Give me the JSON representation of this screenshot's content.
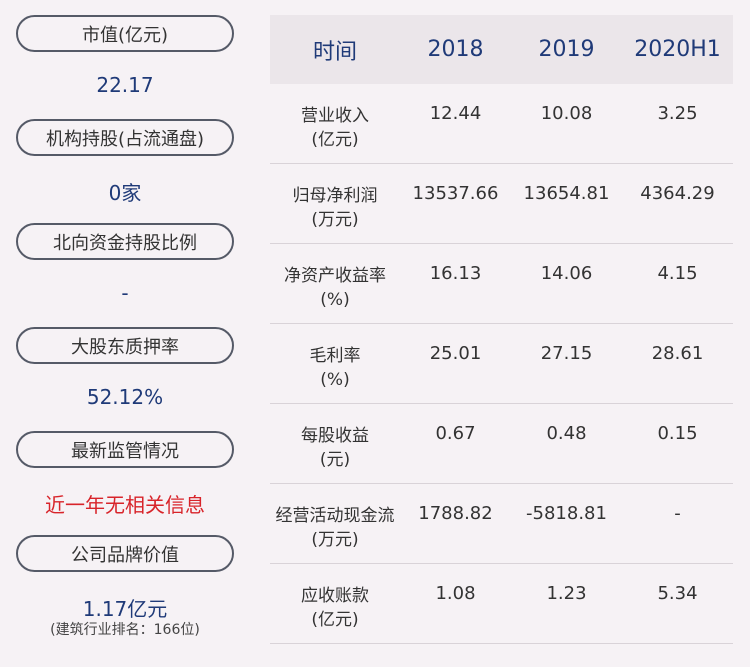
{
  "left_panel": {
    "market_cap_label": "市值(亿元)",
    "market_cap_value": "22.17",
    "institution_label": "机构持股(占流通盘)",
    "institution_value": "0家",
    "northbound_label": "北向资金持股比例",
    "northbound_value": "-",
    "pledge_label": "大股东质押率",
    "pledge_value": "52.12%",
    "regulation_label": "最新监管情况",
    "regulation_value": "近一年无相关信息",
    "brand_label": "公司品牌价值",
    "brand_value": "1.17亿元",
    "brand_rank": "(建筑行业排名：166位)"
  },
  "table": {
    "headers": [
      "时间",
      "2018",
      "2019",
      "2020H1"
    ],
    "rows": [
      {
        "label1": "营业收入",
        "label2": "(亿元)",
        "values": [
          "12.44",
          "10.08",
          "3.25"
        ]
      },
      {
        "label1": "归母净利润",
        "label2": "(万元)",
        "values": [
          "13537.66",
          "13654.81",
          "4364.29"
        ]
      },
      {
        "label1": "净资产收益率",
        "label2": "(%)",
        "values": [
          "16.13",
          "14.06",
          "4.15"
        ]
      },
      {
        "label1": "毛利率",
        "label2": "(%)",
        "values": [
          "25.01",
          "27.15",
          "28.61"
        ]
      },
      {
        "label1": "每股收益",
        "label2": "(元)",
        "values": [
          "0.67",
          "0.48",
          "0.15"
        ]
      },
      {
        "label1": "经营活动现金流",
        "label2": "(万元)",
        "values": [
          "1788.82",
          "-5818.81",
          "-"
        ]
      },
      {
        "label1": "应收账款",
        "label2": "(亿元)",
        "values": [
          "1.08",
          "1.23",
          "5.34"
        ]
      }
    ]
  }
}
